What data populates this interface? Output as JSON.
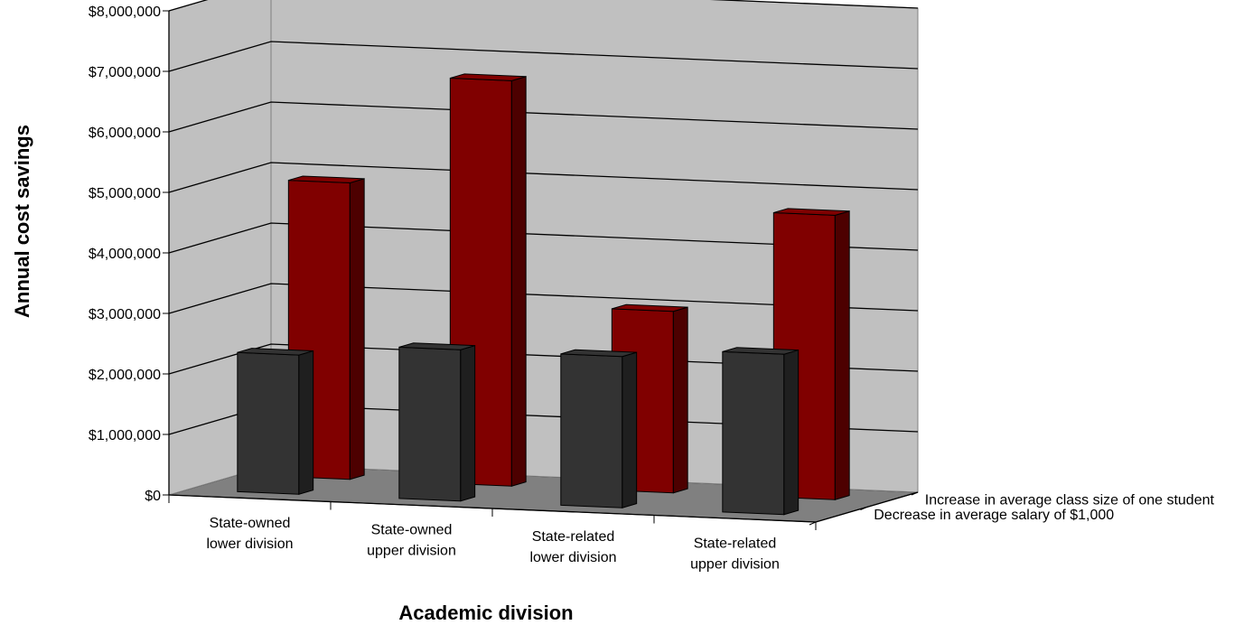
{
  "chart_data": {
    "type": "bar",
    "categories": [
      [
        "State-owned",
        "lower division"
      ],
      [
        "State-owned",
        "upper division"
      ],
      [
        "State-related",
        "lower division"
      ],
      [
        "State-related",
        "upper division"
      ]
    ],
    "series": [
      {
        "name": "Increase in average class size of one student",
        "values": [
          4900000,
          6700000,
          3000000,
          4700000
        ],
        "color": "#800000"
      },
      {
        "name": "Decrease in average salary of $1,000",
        "values": [
          2300000,
          2500000,
          2500000,
          2650000
        ],
        "color": "#333333"
      }
    ],
    "yticks": [
      "$0",
      "$1,000,000",
      "$2,000,000",
      "$3,000,000",
      "$4,000,000",
      "$5,000,000",
      "$6,000,000",
      "$7,000,000",
      "$8,000,000"
    ],
    "ylim": [
      0,
      8000000
    ],
    "xlabel": "Academic division",
    "ylabel": "Annual cost savings",
    "colors": {
      "wall": "#c0c0c0",
      "floor": "#808080",
      "gridline": "#000000"
    }
  }
}
